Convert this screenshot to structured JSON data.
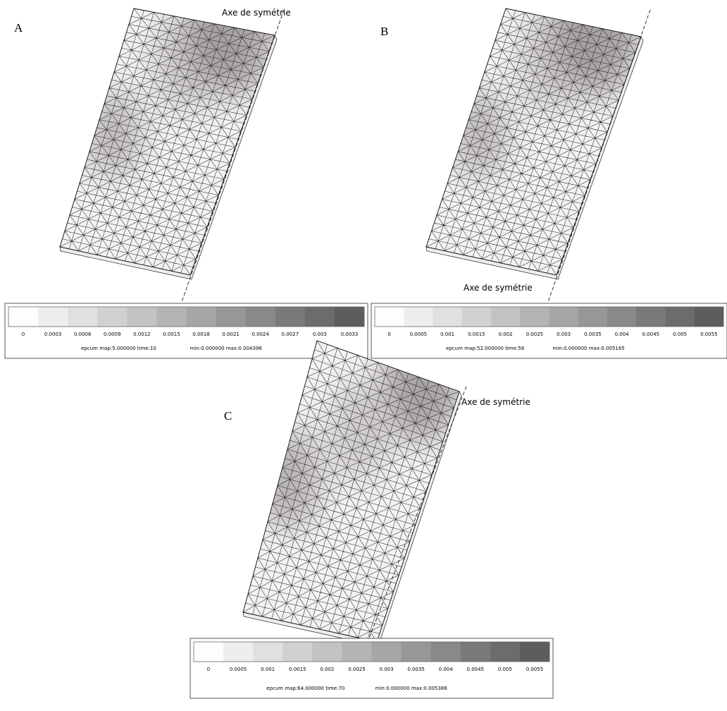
{
  "panels": [
    {
      "label": "A",
      "axis_label": "Axe de symétrie",
      "legend": {
        "ticks": [
          "0",
          "0.0003",
          "0.0006",
          "0.0009",
          "0.0012",
          "0.0015",
          "0.0018",
          "0.0021",
          "0.0024",
          "0.0027",
          "0.003",
          "0.0033"
        ],
        "caption_map": "epcum map:5.000000  time:10",
        "caption_range": "min:0.000000 max:0.004396"
      }
    },
    {
      "label": "B",
      "axis_label": "Axe de symétrie",
      "legend": {
        "ticks": [
          "0",
          "0.0005",
          "0.001",
          "0.0015",
          "0.002",
          "0.0025",
          "0.003",
          "0.0035",
          "0.004",
          "0.0045",
          "0.005",
          "0.0055"
        ],
        "caption_map": "epcum map:52.000000  time:58",
        "caption_range": "min:0.000000 max:0.005165"
      }
    },
    {
      "label": "C",
      "axis_label": "Axe de symétrie",
      "legend": {
        "ticks": [
          "0",
          "0.0005",
          "0.001",
          "0.0015",
          "0.002",
          "0.0025",
          "0.003",
          "0.0035",
          "0.004",
          "0.0045",
          "0.005",
          "0.0055"
        ],
        "caption_map": "epcum map:64.000000  time:70",
        "caption_range": "min:0.000000 max:0.005388"
      }
    }
  ]
}
